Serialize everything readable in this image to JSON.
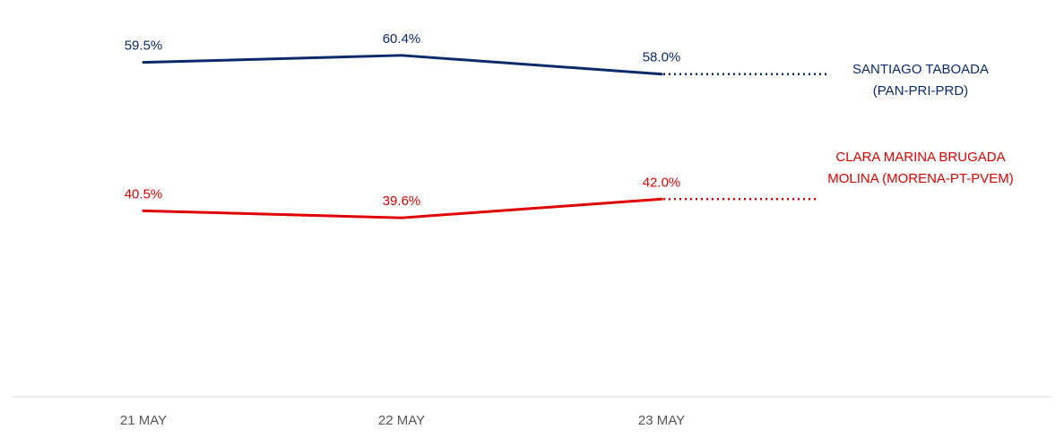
{
  "chart_data": {
    "type": "line",
    "categories": [
      "21 MAY",
      "22 MAY",
      "23 MAY"
    ],
    "ylim": [
      0,
      100
    ],
    "grid": false,
    "title": "",
    "xlabel": "",
    "ylabel": "",
    "series": [
      {
        "name": "SANTIAGO TABOADA (PAN-PRI-PRD)",
        "legend_lines": [
          "SANTIAGO TABOADA",
          "(PAN-PRI-PRD)"
        ],
        "color": "#0b2a6b",
        "values": [
          59.5,
          60.4,
          58.0
        ],
        "labels": [
          "59.5%",
          "60.4%",
          "58.0%"
        ]
      },
      {
        "name": "CLARA MARINA BRUGADA MOLINA (MORENA-PT-PVEM)",
        "legend_lines": [
          "CLARA MARINA BRUGADA",
          "MOLINA (MORENA-PT-PVEM)"
        ],
        "color": "#e00000",
        "values": [
          40.5,
          39.6,
          42.0
        ],
        "labels": [
          "40.5%",
          "39.6%",
          "42.0%"
        ]
      }
    ]
  }
}
